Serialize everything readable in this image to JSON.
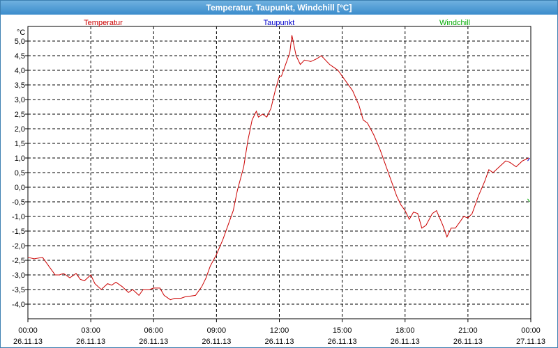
{
  "window": {
    "title": "Temperatur, Taupunkt, Windchill [°C]"
  },
  "colors": {
    "temperature": "#cc0000",
    "dewpoint": "#0000cc",
    "windchill": "#00aa00",
    "grid": "#000000"
  },
  "chart_data": {
    "type": "line",
    "unit_label": "°C",
    "ylim": [
      -4.5,
      5.5
    ],
    "y_ticks": [
      "5,0",
      "4,5",
      "4,0",
      "3,5",
      "3,0",
      "2,5",
      "2,0",
      "1,5",
      "1,0",
      "0,5",
      "0,0",
      "-0,5",
      "-1,0",
      "-1,5",
      "-2,0",
      "-2,5",
      "-3,0",
      "-3,5",
      "-4,0"
    ],
    "y_tick_values": [
      5.0,
      4.5,
      4.0,
      3.5,
      3.0,
      2.5,
      2.0,
      1.5,
      1.0,
      0.5,
      0.0,
      -0.5,
      -1.0,
      -1.5,
      -2.0,
      -2.5,
      -3.0,
      -3.5,
      -4.0
    ],
    "xlim": [
      0,
      24
    ],
    "x_ticks": [
      {
        "time": "00:00",
        "date": "26.11.13"
      },
      {
        "time": "03:00",
        "date": "26.11.13"
      },
      {
        "time": "06:00",
        "date": "26.11.13"
      },
      {
        "time": "09:00",
        "date": "26.11.13"
      },
      {
        "time": "12:00",
        "date": "26.11.13"
      },
      {
        "time": "15:00",
        "date": "26.11.13"
      },
      {
        "time": "18:00",
        "date": "26.11.13"
      },
      {
        "time": "21:00",
        "date": "26.11.13"
      },
      {
        "time": "00:00",
        "date": "27.11.13"
      }
    ],
    "grid": true,
    "series": [
      {
        "name": "Temperatur",
        "color": "#cc0000",
        "x": [
          0,
          0.3,
          0.7,
          1.0,
          1.3,
          1.5,
          1.7,
          2.0,
          2.3,
          2.5,
          2.7,
          3.0,
          3.2,
          3.5,
          3.8,
          4.0,
          4.2,
          4.5,
          4.8,
          5.0,
          5.3,
          5.5,
          5.8,
          6.0,
          6.3,
          6.5,
          6.8,
          7.0,
          7.3,
          7.5,
          8.0,
          8.3,
          8.5,
          8.7,
          9.0,
          9.3,
          9.5,
          9.8,
          10.0,
          10.3,
          10.5,
          10.7,
          10.9,
          11.0,
          11.2,
          11.4,
          11.6,
          11.8,
          12.0,
          12.1,
          12.3,
          12.5,
          12.6,
          12.8,
          13.0,
          13.2,
          13.5,
          13.8,
          14.0,
          14.2,
          14.4,
          14.6,
          14.8,
          15.0,
          15.2,
          15.5,
          15.8,
          16.0,
          16.2,
          16.5,
          16.8,
          17.0,
          17.3,
          17.6,
          17.8,
          18.0,
          18.2,
          18.4,
          18.6,
          18.8,
          19.0,
          19.3,
          19.5,
          19.8,
          20.0,
          20.2,
          20.4,
          20.6,
          20.8,
          21.0,
          21.2,
          21.5,
          21.8,
          22.0,
          22.2,
          22.5,
          22.8,
          23.0,
          23.3,
          23.6,
          23.9
        ],
        "y": [
          -2.4,
          -2.45,
          -2.4,
          -2.7,
          -3.0,
          -3.0,
          -2.95,
          -3.1,
          -2.95,
          -3.15,
          -3.2,
          -3.0,
          -3.3,
          -3.5,
          -3.3,
          -3.35,
          -3.25,
          -3.4,
          -3.6,
          -3.5,
          -3.7,
          -3.5,
          -3.5,
          -3.45,
          -3.45,
          -3.7,
          -3.85,
          -3.8,
          -3.8,
          -3.75,
          -3.7,
          -3.4,
          -3.1,
          -2.7,
          -2.3,
          -1.8,
          -1.4,
          -0.8,
          -0.1,
          0.7,
          1.6,
          2.3,
          2.6,
          2.4,
          2.5,
          2.4,
          2.7,
          3.3,
          3.8,
          3.8,
          4.2,
          4.6,
          5.2,
          4.5,
          4.2,
          4.35,
          4.3,
          4.4,
          4.5,
          4.35,
          4.2,
          4.1,
          4.0,
          3.8,
          3.6,
          3.3,
          2.8,
          2.3,
          2.2,
          1.8,
          1.3,
          0.9,
          0.3,
          -0.3,
          -0.6,
          -0.8,
          -1.1,
          -0.85,
          -0.9,
          -1.4,
          -1.3,
          -0.9,
          -0.8,
          -1.3,
          -1.7,
          -1.4,
          -1.4,
          -1.2,
          -1.0,
          -1.05,
          -0.9,
          -0.3,
          0.2,
          0.6,
          0.5,
          0.7,
          0.9,
          0.85,
          0.7,
          0.9,
          1.0
        ]
      },
      {
        "name": "Taupunkt",
        "color": "#0000cc",
        "x": [
          23.85,
          23.95
        ],
        "y": [
          0.9,
          1.0
        ]
      },
      {
        "name": "Windchill",
        "color": "#00aa00",
        "x": [
          23.85,
          23.95
        ],
        "y": [
          -0.4,
          -0.5
        ]
      }
    ]
  }
}
